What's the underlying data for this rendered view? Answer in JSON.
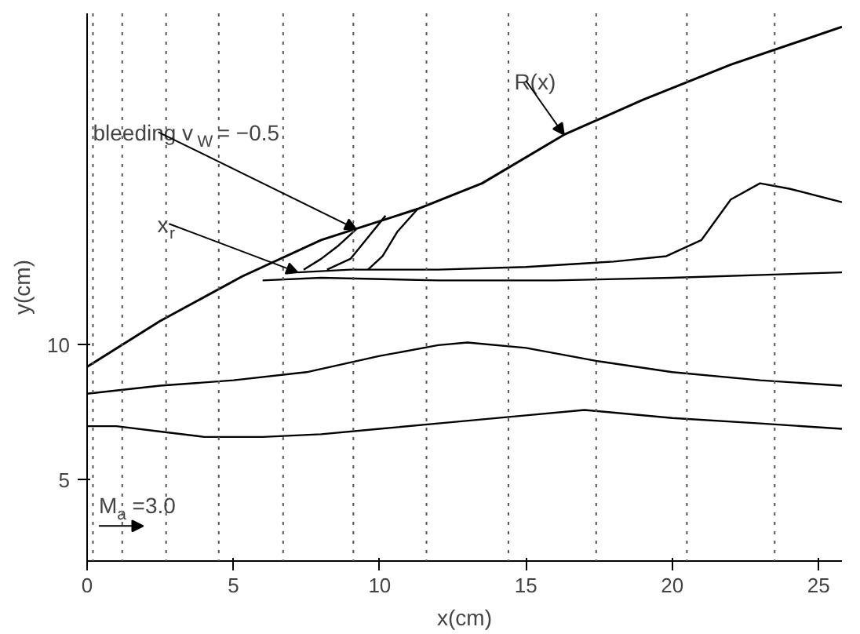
{
  "chart_data": {
    "type": "line",
    "xlabel": "x(cm)",
    "ylabel": "y(cm)",
    "xlim": [
      0,
      25.8
    ],
    "ylim": [
      2,
      22.3
    ],
    "xticks": [
      0,
      5,
      10,
      15,
      20,
      25
    ],
    "yticks": [
      5,
      10
    ],
    "grid": false,
    "line_style": "solid",
    "series": [
      {
        "color": "#000000",
        "x": [
          0,
          2.5,
          5.3,
          8,
          11.3,
          13.5,
          16.3,
          19,
          22,
          25.8
        ],
        "values": [
          9.2,
          10.9,
          12.55,
          13.9,
          15.05,
          16.0,
          17.8,
          19.1,
          20.4,
          21.8
        ]
      },
      {
        "color": "#000000",
        "x": [
          7.2,
          9,
          12,
          15,
          18,
          19.8,
          21,
          22,
          23,
          24,
          25.8
        ],
        "values": [
          12.7,
          12.8,
          12.8,
          12.9,
          13.1,
          13.3,
          13.9,
          15.4,
          16.0,
          15.8,
          15.3
        ]
      },
      {
        "color": "#000000",
        "x": [
          6,
          8,
          12,
          16,
          20,
          25.8
        ],
        "values": [
          12.4,
          12.5,
          12.4,
          12.4,
          12.5,
          12.7
        ]
      },
      {
        "color": "#000000",
        "x": [
          0,
          2.5,
          5,
          7.5,
          10,
          12,
          13,
          15,
          17.5,
          20,
          23,
          25.8
        ],
        "values": [
          8.2,
          8.5,
          8.7,
          9.0,
          9.6,
          10.0,
          10.1,
          9.9,
          9.4,
          9.0,
          8.7,
          8.5
        ]
      },
      {
        "color": "#000000",
        "x": [
          0,
          1,
          2.5,
          4,
          6,
          8,
          10,
          12,
          15,
          17,
          20,
          23,
          25.8
        ],
        "values": [
          7.0,
          7.0,
          6.8,
          6.6,
          6.6,
          6.7,
          6.9,
          7.1,
          7.4,
          7.6,
          7.3,
          7.1,
          6.9
        ]
      },
      {
        "color": "#000000",
        "x": [
          9.2,
          8.6,
          8.0,
          7.4
        ],
        "values": [
          14.3,
          13.7,
          13.2,
          12.8
        ]
      },
      {
        "color": "#000000",
        "x": [
          10.2,
          9.6,
          9.0,
          8.2
        ],
        "values": [
          14.8,
          14.0,
          13.2,
          12.8
        ]
      },
      {
        "color": "#000000",
        "x": [
          11.3,
          10.6,
          10.1,
          9.6
        ],
        "values": [
          15.05,
          14.2,
          13.3,
          12.8
        ]
      }
    ],
    "ref_lines": [
      {
        "axis": "x",
        "value": 0.2,
        "color": "#555555",
        "line_style": "dotted"
      },
      {
        "axis": "x",
        "value": 1.2,
        "color": "#555555",
        "line_style": "dotted"
      },
      {
        "axis": "x",
        "value": 2.7,
        "color": "#555555",
        "line_style": "dotted"
      },
      {
        "axis": "x",
        "value": 4.5,
        "color": "#555555",
        "line_style": "dotted"
      },
      {
        "axis": "x",
        "value": 6.7,
        "color": "#555555",
        "line_style": "dotted"
      },
      {
        "axis": "x",
        "value": 9.1,
        "color": "#555555",
        "line_style": "dotted"
      },
      {
        "axis": "x",
        "value": 11.6,
        "color": "#555555",
        "line_style": "dotted"
      },
      {
        "axis": "x",
        "value": 14.4,
        "color": "#555555",
        "line_style": "dotted"
      },
      {
        "axis": "x",
        "value": 17.4,
        "color": "#555555",
        "line_style": "dotted"
      },
      {
        "axis": "x",
        "value": 20.5,
        "color": "#555555",
        "line_style": "dotted"
      },
      {
        "axis": "x",
        "value": 23.5,
        "color": "#555555",
        "line_style": "dotted"
      }
    ],
    "annotations": [
      {
        "text": "bleeding v$_{W}$ = −0.5",
        "x": 9.2,
        "y": 14.3
      },
      {
        "text": "R(x)",
        "x": 16.3,
        "y": 17.8
      },
      {
        "text": "x$_{r}$",
        "x": 7.2,
        "y": 12.7
      },
      "M$_{a}$ =3.0"
    ]
  }
}
